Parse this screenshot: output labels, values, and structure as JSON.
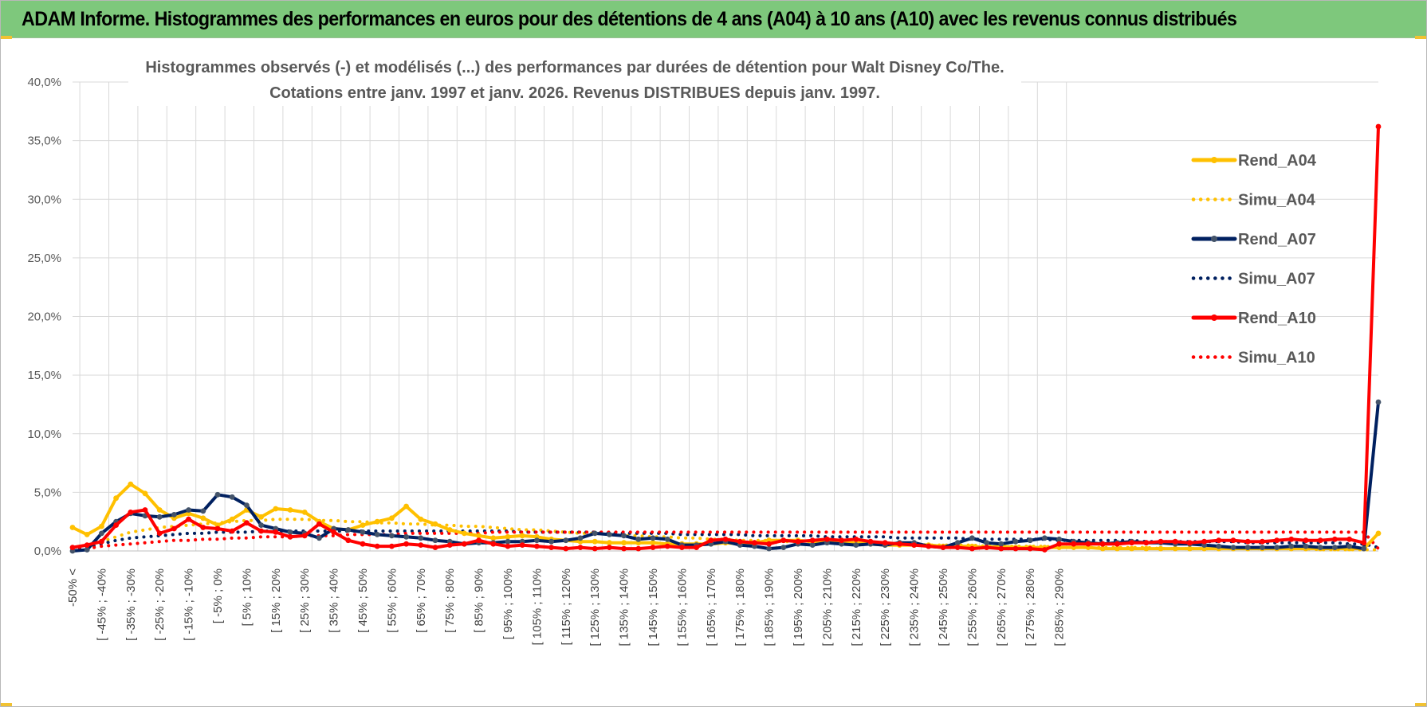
{
  "banner": {
    "title": "ADAM Informe. Histogrammes des performances en euros pour des détentions de 4 ans (A04) à 10 ans (A10) avec les revenus connus distribués",
    "background": "#7ec87c"
  },
  "chart_data": {
    "type": "line",
    "title": "Histogrammes observés (-) et modélisés (...) des performances par durées de détention pour Walt Disney Co/The.",
    "subtitle": "Cotations entre janv. 1997 et janv. 2026. Revenus DISTRIBUES depuis janv. 1997.",
    "xlabel": "",
    "ylabel": "",
    "ylim": [
      0,
      40
    ],
    "y_ticks": [
      "0,0%",
      "5,0%",
      "10,0%",
      "15,0%",
      "20,0%",
      "25,0%",
      "30,0%",
      "35,0%",
      "40,0%"
    ],
    "grid": true,
    "legend_position": "right",
    "x_labels": [
      "-50% <",
      "[ -45% ; -40%",
      "[ -35% ; -30%",
      "[ -25% ; -20%",
      "[ -15% ; -10%",
      "[ -5% ; 0%",
      "[ 5% ; 10%",
      "[ 15% ; 20%",
      "[ 25% ; 30%",
      "[ 35% ; 40%",
      "[ 45% ; 50%",
      "[ 55% ; 60%",
      "[ 65% ; 70%",
      "[ 75% ; 80%",
      "[ 85% ; 90%",
      "[ 95% ; 100%",
      "[ 105% ; 110%",
      "[ 115% ; 120%",
      "[ 125% ; 130%",
      "[ 135% ; 140%",
      "[ 145% ; 150%",
      "[ 155% ; 160%",
      "[ 165% ; 170%",
      "[ 175% ; 180%",
      "[ 185% ; 190%",
      "[ 195% ; 200%",
      "[ 205% ; 210%",
      "[ 215% ; 220%",
      "[ 225% ; 230%",
      "[ 235% ; 240%",
      "[ 245% ; 250%",
      "[ 255% ; 260%",
      "[ 265% ; 270%",
      "[ 275% ; 280%",
      "[ 285% ; 290%"
    ],
    "series": [
      {
        "name": "Rend_A04",
        "color": "#ffc000",
        "style": "solid",
        "markers": true,
        "values": [
          2.0,
          1.4,
          2.1,
          4.5,
          5.7,
          4.9,
          3.5,
          2.8,
          3.2,
          2.8,
          2.2,
          2.7,
          3.5,
          2.9,
          3.6,
          3.5,
          3.3,
          2.5,
          1.9,
          1.8,
          2.2,
          2.5,
          2.8,
          3.8,
          2.7,
          2.3,
          1.8,
          1.5,
          1.3,
          1.1,
          1.2,
          1.3,
          1.2,
          1.0,
          0.9,
          0.8,
          0.8,
          0.7,
          0.7,
          0.7,
          0.7,
          0.6,
          0.6,
          0.6,
          0.6,
          0.7,
          0.6,
          0.7,
          0.9,
          0.9,
          0.9,
          0.8,
          0.8,
          0.7,
          0.7,
          0.6,
          0.5,
          0.5,
          0.5,
          0.5,
          0.4,
          0.4,
          0.4,
          0.3,
          0.4,
          0.3,
          0.3,
          0.3,
          0.3,
          0.3,
          0.3,
          0.2,
          0.2,
          0.2,
          0.2,
          0.2,
          0.2,
          0.2,
          0.2,
          0.2,
          0.2,
          0.2,
          0.2,
          0.2,
          0.2,
          0.2,
          0.2,
          0.2,
          0.2,
          0.2,
          1.5
        ]
      },
      {
        "name": "Simu_A04",
        "color": "#ffc000",
        "style": "dotted",
        "markers": false,
        "values": [
          0.3,
          0.5,
          0.8,
          1.2,
          1.6,
          1.8,
          2.0,
          2.1,
          2.2,
          2.3,
          2.4,
          2.5,
          2.6,
          2.6,
          2.7,
          2.7,
          2.7,
          2.6,
          2.6,
          2.5,
          2.5,
          2.4,
          2.4,
          2.3,
          2.3,
          2.2,
          2.2,
          2.1,
          2.1,
          2.0,
          1.9,
          1.8,
          1.8,
          1.7,
          1.6,
          1.5,
          1.5,
          1.4,
          1.3,
          1.3,
          1.2,
          1.2,
          1.1,
          1.1,
          1.0,
          1.0,
          0.9,
          0.9,
          0.9,
          0.8,
          0.8,
          0.8,
          0.7,
          0.7,
          0.7,
          0.6,
          0.6,
          0.6,
          0.6,
          0.5,
          0.5,
          0.5,
          0.5,
          0.4,
          0.4,
          0.4,
          0.4,
          0.4,
          0.3,
          0.3,
          0.3,
          0.3,
          0.3,
          0.3,
          0.3,
          0.2,
          0.2,
          0.2,
          0.2,
          0.2,
          0.2,
          0.2,
          0.2,
          0.2,
          0.2,
          0.2,
          0.1,
          0.1,
          0.1,
          0.1,
          0.1
        ]
      },
      {
        "name": "Rend_A07",
        "color": "#002060",
        "style": "solid",
        "markers": true,
        "values": [
          0.0,
          0.1,
          1.5,
          2.5,
          3.2,
          3.0,
          2.9,
          3.1,
          3.5,
          3.4,
          4.8,
          4.6,
          3.9,
          2.2,
          1.9,
          1.6,
          1.5,
          1.1,
          1.9,
          1.8,
          1.6,
          1.4,
          1.3,
          1.2,
          1.1,
          0.9,
          0.8,
          0.6,
          0.7,
          0.7,
          0.8,
          0.8,
          0.9,
          0.8,
          0.9,
          1.1,
          1.5,
          1.4,
          1.3,
          1.0,
          1.1,
          1.0,
          0.5,
          0.5,
          0.6,
          0.8,
          0.5,
          0.4,
          0.2,
          0.3,
          0.6,
          0.5,
          0.7,
          0.6,
          0.5,
          0.6,
          0.5,
          0.7,
          0.7,
          0.4,
          0.3,
          0.7,
          1.1,
          0.7,
          0.6,
          0.8,
          0.9,
          1.1,
          1.0,
          0.8,
          0.7,
          0.6,
          0.7,
          0.8,
          0.7,
          0.7,
          0.6,
          0.6,
          0.5,
          0.4,
          0.3,
          0.3,
          0.3,
          0.3,
          0.4,
          0.4,
          0.3,
          0.3,
          0.4,
          0.2,
          12.7
        ]
      },
      {
        "name": "Simu_A07",
        "color": "#002060",
        "style": "dotted",
        "markers": false,
        "values": [
          0.1,
          0.3,
          0.6,
          0.9,
          1.1,
          1.2,
          1.3,
          1.4,
          1.5,
          1.5,
          1.6,
          1.6,
          1.6,
          1.7,
          1.7,
          1.7,
          1.7,
          1.7,
          1.7,
          1.7,
          1.7,
          1.7,
          1.7,
          1.7,
          1.7,
          1.7,
          1.7,
          1.7,
          1.7,
          1.7,
          1.7,
          1.6,
          1.6,
          1.6,
          1.6,
          1.6,
          1.6,
          1.5,
          1.5,
          1.5,
          1.5,
          1.5,
          1.4,
          1.4,
          1.4,
          1.4,
          1.4,
          1.3,
          1.3,
          1.3,
          1.3,
          1.3,
          1.2,
          1.2,
          1.2,
          1.2,
          1.2,
          1.1,
          1.1,
          1.1,
          1.1,
          1.1,
          1.0,
          1.0,
          1.0,
          1.0,
          1.0,
          1.0,
          0.9,
          0.9,
          0.9,
          0.9,
          0.9,
          0.9,
          0.8,
          0.8,
          0.8,
          0.8,
          0.8,
          0.8,
          0.8,
          0.7,
          0.7,
          0.7,
          0.7,
          0.7,
          0.7,
          0.7,
          0.6,
          0.6,
          0.3
        ]
      },
      {
        "name": "Rend_A10",
        "color": "#ff0000",
        "style": "solid",
        "markers": true,
        "values": [
          0.3,
          0.5,
          0.8,
          2.2,
          3.3,
          3.5,
          1.5,
          1.9,
          2.7,
          2.0,
          1.9,
          1.7,
          2.4,
          1.7,
          1.6,
          1.2,
          1.3,
          2.3,
          1.6,
          0.9,
          0.6,
          0.4,
          0.4,
          0.6,
          0.5,
          0.3,
          0.5,
          0.6,
          0.9,
          0.6,
          0.4,
          0.5,
          0.4,
          0.3,
          0.2,
          0.3,
          0.2,
          0.3,
          0.2,
          0.2,
          0.3,
          0.4,
          0.3,
          0.3,
          0.9,
          1.0,
          0.8,
          0.7,
          0.6,
          0.9,
          0.8,
          0.9,
          1.0,
          0.9,
          1.0,
          0.8,
          0.7,
          0.6,
          0.5,
          0.4,
          0.3,
          0.3,
          0.2,
          0.3,
          0.2,
          0.2,
          0.2,
          0.1,
          0.6,
          0.6,
          0.6,
          0.6,
          0.6,
          0.7,
          0.7,
          0.8,
          0.8,
          0.7,
          0.8,
          0.9,
          0.9,
          0.8,
          0.8,
          0.9,
          1.0,
          0.9,
          0.9,
          1.0,
          1.0,
          0.7,
          36.2
        ]
      },
      {
        "name": "Simu_A10",
        "color": "#ff0000",
        "style": "dotted",
        "markers": false,
        "values": [
          0.1,
          0.2,
          0.4,
          0.5,
          0.6,
          0.7,
          0.8,
          0.9,
          0.9,
          1.0,
          1.0,
          1.1,
          1.1,
          1.2,
          1.2,
          1.2,
          1.3,
          1.3,
          1.3,
          1.4,
          1.4,
          1.4,
          1.4,
          1.5,
          1.5,
          1.5,
          1.5,
          1.5,
          1.5,
          1.6,
          1.6,
          1.6,
          1.6,
          1.6,
          1.6,
          1.6,
          1.6,
          1.6,
          1.6,
          1.6,
          1.6,
          1.6,
          1.6,
          1.6,
          1.6,
          1.6,
          1.6,
          1.6,
          1.6,
          1.6,
          1.6,
          1.6,
          1.6,
          1.6,
          1.6,
          1.6,
          1.6,
          1.6,
          1.6,
          1.6,
          1.6,
          1.6,
          1.6,
          1.6,
          1.6,
          1.6,
          1.6,
          1.6,
          1.6,
          1.6,
          1.6,
          1.6,
          1.6,
          1.6,
          1.6,
          1.6,
          1.6,
          1.6,
          1.6,
          1.6,
          1.6,
          1.6,
          1.6,
          1.6,
          1.6,
          1.6,
          1.6,
          1.6,
          1.6,
          1.6,
          0.2
        ]
      }
    ]
  }
}
